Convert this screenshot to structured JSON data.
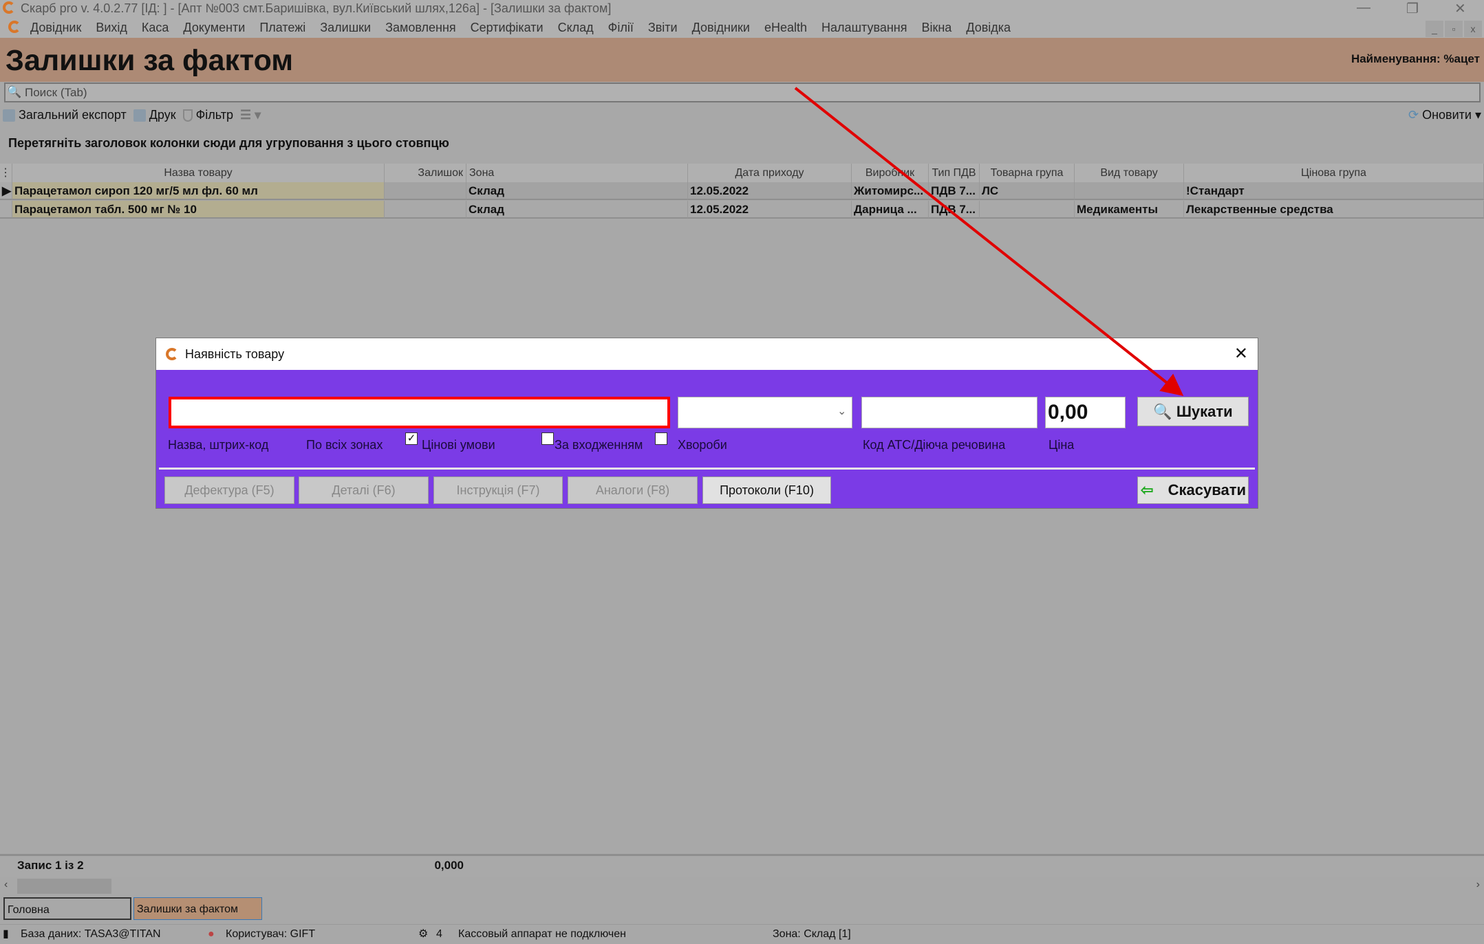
{
  "window": {
    "title": "Скарб pro v. 4.0.2.77 [ІД:       ] - [Апт №003 смт.Баришівка, вул.Київський шлях,126а] - [Залишки за фактом]"
  },
  "menu": [
    "Довідник",
    "Вихід",
    "Каса",
    "Документи",
    "Платежі",
    "Залишки",
    "Замовлення",
    "Сертифікати",
    "Склад",
    "Філії",
    "Звіти",
    "Довідники",
    "eHealth",
    "Налаштування",
    "Вікна",
    "Довідка"
  ],
  "header": {
    "title": "Залишки за фактом",
    "filter": "Найменування: %ацет"
  },
  "search": {
    "placeholder": "Поиск (Tab)"
  },
  "toolbar": {
    "export": "Загальний експорт",
    "print": "Друк",
    "filter": "Фільтр",
    "refresh": "Оновити"
  },
  "group_hint": "Перетягніть заголовок колонки сюди для угруповання з цього стовпцю",
  "columns": [
    "Назва товару",
    "Залишок",
    "Зона",
    "Дата приходу",
    "Виробник",
    "Тип ПДВ",
    "Товарна група",
    "Вид товару",
    "Цінова група"
  ],
  "rows": [
    [
      "Парацетамол сироп 120 мг/5 мл фл. 60 мл",
      "",
      "Склад",
      "12.05.2022",
      "Житомирс...",
      "ПДВ 7...",
      "ЛС",
      "",
      "!Стандарт"
    ],
    [
      "Парацетамол табл. 500 мг № 10",
      "",
      "Склад",
      "12.05.2022",
      "Дарница ...",
      "ПДВ 7...",
      "",
      "Медикаменты",
      "Лекарственные средства"
    ]
  ],
  "footer": {
    "record": "Запис 1 із 2",
    "total": "0,000"
  },
  "tabs": [
    "Головна",
    "Залишки за фактом"
  ],
  "status": {
    "db": "База даних: TASA3@TITAN",
    "user": "Користувач: GIFT",
    "count": "4",
    "cash": "Кассовый аппарат не подключен",
    "zone": "Зона: Склад [1]"
  },
  "dialog": {
    "title": "Наявність товару",
    "name_value": "",
    "name_label": "Назва, штрих-код",
    "all_zones": "По всіх зонах",
    "price_terms": "Цінові умови",
    "price_terms_checked": true,
    "by_entry": "За входженням",
    "by_entry_checked": false,
    "diseases": "Хвороби",
    "diseases_checked": false,
    "zone_value": "",
    "atc_value": "",
    "atc_label": "Код АТС/Діюча речовина",
    "price_value": "0,00",
    "price_label": "Ціна",
    "search": "Шукати",
    "cancel": "Скасувати",
    "buttons": [
      "Дефектура (F5)",
      "Деталі (F6)",
      "Інструкція (F7)",
      "Аналоги (F8)",
      "Протоколи (F10)"
    ]
  },
  "colors": {
    "dialog_bg": "#7b3be6",
    "header_band": "#ad8a75",
    "annotation_arrow": "#e00000"
  }
}
